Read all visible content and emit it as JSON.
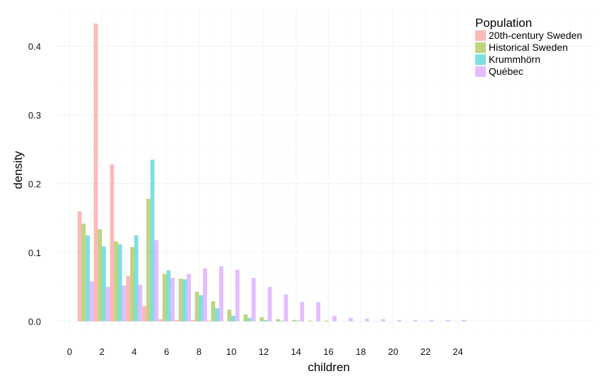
{
  "chart_data": {
    "type": "bar",
    "xlabel": "children",
    "ylabel": "density",
    "xlim": [
      -0.8,
      32.5
    ],
    "ylim": [
      -0.015,
      0.455
    ],
    "x_ticks": [
      0,
      2,
      4,
      6,
      8,
      10,
      12,
      14,
      16,
      18,
      20,
      22,
      24
    ],
    "y_ticks": [
      0.0,
      0.1,
      0.2,
      0.3,
      0.4
    ],
    "y_tick_labels": [
      "0.0",
      "0.1",
      "0.2",
      "0.3",
      "0.4"
    ],
    "grid": true,
    "legend": {
      "title": "Population",
      "position": "top-right"
    },
    "bar_width_ratio": 0.25,
    "series": [
      {
        "name": "20th-century Sweden",
        "color": "#f8766d",
        "x": [
          1,
          2,
          3,
          4,
          5,
          6,
          7,
          8,
          9
        ],
        "values": [
          0.16,
          0.433,
          0.228,
          0.066,
          0.022,
          0.003,
          0.002,
          0.002,
          0.001
        ]
      },
      {
        "name": "Historical Sweden",
        "color": "#7cae00",
        "x": [
          1,
          2,
          3,
          4,
          5,
          6,
          7,
          8,
          9,
          10,
          11,
          12,
          13,
          14,
          15,
          16
        ],
        "values": [
          0.142,
          0.134,
          0.116,
          0.108,
          0.178,
          0.069,
          0.062,
          0.043,
          0.029,
          0.017,
          0.01,
          0.006,
          0.003,
          0.002,
          0.001,
          0.001
        ]
      },
      {
        "name": "Krummhörn",
        "color": "#00bfc4",
        "x": [
          1,
          2,
          3,
          4,
          5,
          6,
          7,
          8,
          9,
          10,
          11,
          12,
          13,
          14
        ],
        "values": [
          0.125,
          0.109,
          0.112,
          0.125,
          0.235,
          0.074,
          0.061,
          0.038,
          0.019,
          0.008,
          0.005,
          0.002,
          0.001,
          0.001
        ]
      },
      {
        "name": "Québec",
        "color": "#c77cff",
        "x": [
          1,
          2,
          3,
          4,
          5,
          6,
          7,
          8,
          9,
          10,
          11,
          12,
          13,
          14,
          15,
          16,
          17,
          18,
          19,
          20,
          21,
          22,
          23,
          24
        ],
        "values": [
          0.058,
          0.05,
          0.052,
          0.053,
          0.118,
          0.063,
          0.069,
          0.077,
          0.08,
          0.075,
          0.063,
          0.05,
          0.039,
          0.028,
          0.028,
          0.008,
          0.005,
          0.004,
          0.003,
          0.002,
          0.002,
          0.002,
          0.002,
          0.002
        ]
      }
    ]
  }
}
